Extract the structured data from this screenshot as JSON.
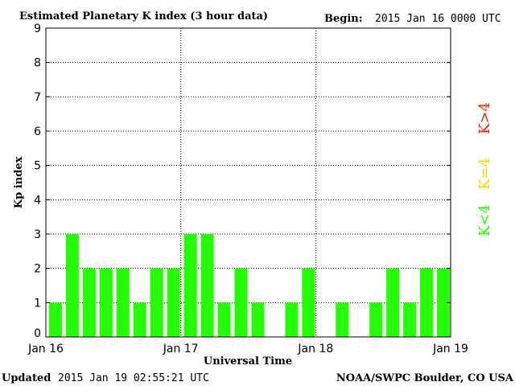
{
  "chart_data": {
    "type": "bar",
    "title": "Estimated Planetary K index (3 hour data)",
    "begin_label": "Begin:",
    "begin_value": "2015 Jan 16 0000 UTC",
    "xlabel": "Universal Time",
    "ylabel": "Kp index",
    "ylim": [
      0,
      9
    ],
    "yticks": [
      "0",
      "1",
      "2",
      "3",
      "4",
      "5",
      "6",
      "7",
      "8",
      "9"
    ],
    "xticks": [
      "Jan 16",
      "Jan 17",
      "Jan 18",
      "Jan 19"
    ],
    "interval_hours": 3,
    "values": [
      1,
      3,
      2,
      2,
      2,
      1,
      2,
      2,
      3,
      3,
      1,
      2,
      1,
      0,
      1,
      2,
      0,
      1,
      0,
      1,
      2,
      1,
      2,
      2
    ],
    "bar_color": "#22ff00",
    "legend": [
      {
        "label": "K<4",
        "color": "#22ff00"
      },
      {
        "label": "K=4",
        "color": "#ffd700"
      },
      {
        "label": "K>4",
        "color": "#ff2200"
      }
    ],
    "grid": "dotted"
  },
  "footer": {
    "updated_label": "Updated",
    "updated_value": "2015 Jan 19 02:55:21 UTC",
    "source": "NOAA/SWPC Boulder, CO USA"
  }
}
